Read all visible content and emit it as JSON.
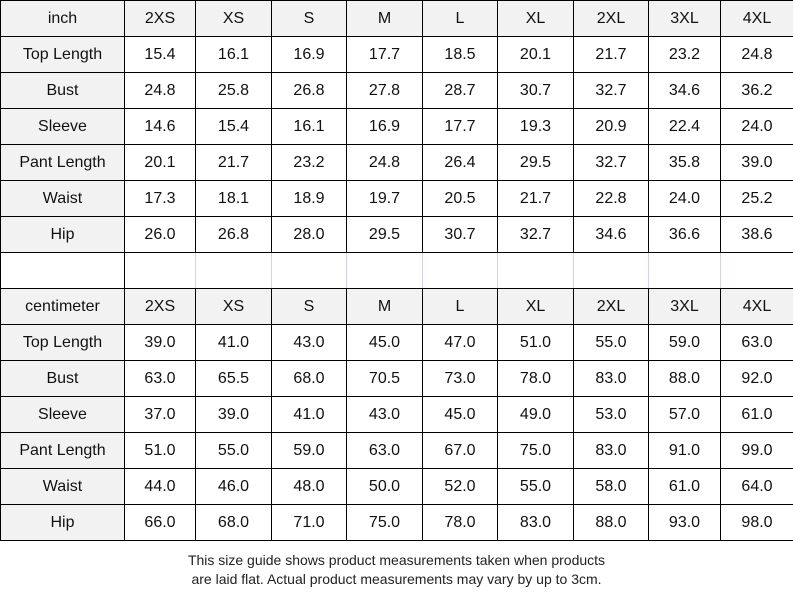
{
  "inch": {
    "unit": "inch",
    "sizes": [
      "2XS",
      "XS",
      "S",
      "M",
      "L",
      "XL",
      "2XL",
      "3XL",
      "4XL"
    ],
    "rows": [
      {
        "label": "Top Length",
        "values": [
          "15.4",
          "16.1",
          "16.9",
          "17.7",
          "18.5",
          "20.1",
          "21.7",
          "23.2",
          "24.8"
        ]
      },
      {
        "label": "Bust",
        "values": [
          "24.8",
          "25.8",
          "26.8",
          "27.8",
          "28.7",
          "30.7",
          "32.7",
          "34.6",
          "36.2"
        ]
      },
      {
        "label": "Sleeve",
        "values": [
          "14.6",
          "15.4",
          "16.1",
          "16.9",
          "17.7",
          "19.3",
          "20.9",
          "22.4",
          "24.0"
        ]
      },
      {
        "label": "Pant Length",
        "values": [
          "20.1",
          "21.7",
          "23.2",
          "24.8",
          "26.4",
          "29.5",
          "32.7",
          "35.8",
          "39.0"
        ]
      },
      {
        "label": "Waist",
        "values": [
          "17.3",
          "18.1",
          "18.9",
          "19.7",
          "20.5",
          "21.7",
          "22.8",
          "24.0",
          "25.2"
        ]
      },
      {
        "label": "Hip",
        "values": [
          "26.0",
          "26.8",
          "28.0",
          "29.5",
          "30.7",
          "32.7",
          "34.6",
          "36.6",
          "38.6"
        ]
      }
    ]
  },
  "cm": {
    "unit": "centimeter",
    "sizes": [
      "2XS",
      "XS",
      "S",
      "M",
      "L",
      "XL",
      "2XL",
      "3XL",
      "4XL"
    ],
    "rows": [
      {
        "label": "Top Length",
        "values": [
          "39.0",
          "41.0",
          "43.0",
          "45.0",
          "47.0",
          "51.0",
          "55.0",
          "59.0",
          "63.0"
        ]
      },
      {
        "label": "Bust",
        "values": [
          "63.0",
          "65.5",
          "68.0",
          "70.5",
          "73.0",
          "78.0",
          "83.0",
          "88.0",
          "92.0"
        ]
      },
      {
        "label": "Sleeve",
        "values": [
          "37.0",
          "39.0",
          "41.0",
          "43.0",
          "45.0",
          "49.0",
          "53.0",
          "57.0",
          "61.0"
        ]
      },
      {
        "label": "Pant Length",
        "values": [
          "51.0",
          "55.0",
          "59.0",
          "63.0",
          "67.0",
          "75.0",
          "83.0",
          "91.0",
          "99.0"
        ]
      },
      {
        "label": "Waist",
        "values": [
          "44.0",
          "46.0",
          "48.0",
          "50.0",
          "52.0",
          "55.0",
          "58.0",
          "61.0",
          "64.0"
        ]
      },
      {
        "label": "Hip",
        "values": [
          "66.0",
          "68.0",
          "71.0",
          "75.0",
          "78.0",
          "83.0",
          "88.0",
          "93.0",
          "98.0"
        ]
      }
    ]
  },
  "note": {
    "line1": "This size guide shows product measurements taken when products",
    "line2": "are laid flat. Actual product measurements may vary by up to 3cm."
  },
  "colors": {
    "header_bg": "#f2f2f2",
    "border": "#000000"
  }
}
